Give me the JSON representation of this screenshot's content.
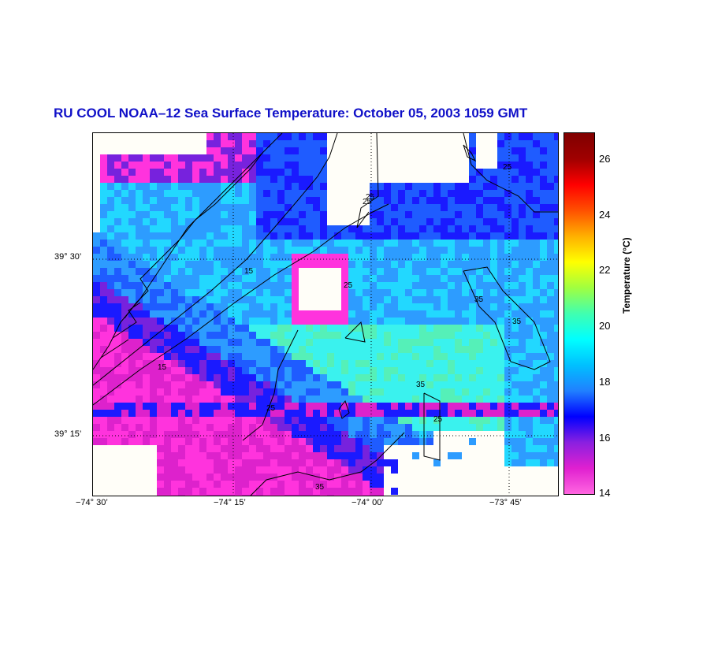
{
  "title": "RU COOL  NOAA–12  Sea Surface Temperature:  October 05, 2003 1059 GMT",
  "map": {
    "latitude_labels": [
      "39° 30’",
      "39° 15’"
    ],
    "longitude_labels": [
      "−74° 30’",
      "−74° 15’",
      "−74° 00’",
      "−73° 45’"
    ],
    "contour_labels": [
      "25",
      "15",
      "25",
      "15",
      "25",
      "35",
      "25",
      "35",
      "35",
      "25",
      "25",
      "35"
    ]
  },
  "colorbar": {
    "label": "Temperature (°C)",
    "ticks": [
      "26",
      "24",
      "22",
      "20",
      "18",
      "16",
      "14"
    ],
    "range": [
      14,
      27
    ],
    "colors": [
      "#ff66e0",
      "#e020d0",
      "#8a20e0",
      "#0000ff",
      "#2080ff",
      "#00c0ff",
      "#00ffff",
      "#40ffb0",
      "#a0ff40",
      "#ffff00",
      "#ffb000",
      "#ff5000",
      "#ff0000",
      "#a00000",
      "#800000"
    ]
  }
}
